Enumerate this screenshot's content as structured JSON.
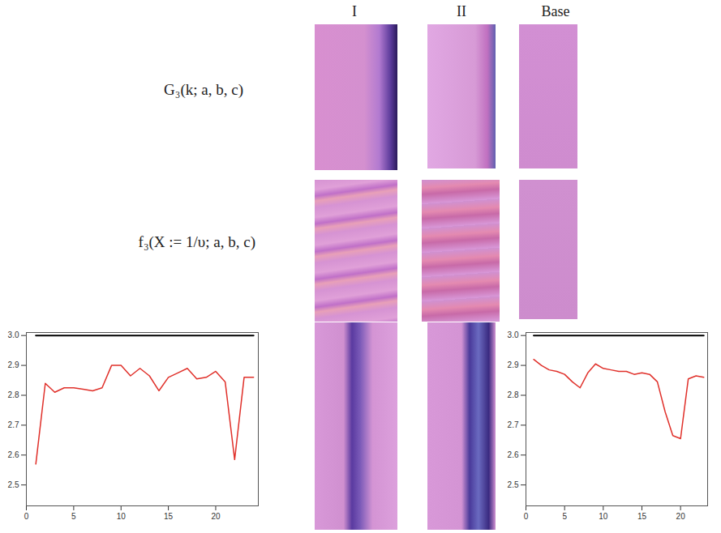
{
  "figure": {
    "column_heads": [
      "I",
      "II",
      "Base"
    ],
    "row_labels": [
      "G₃(k; a, b, c)",
      "f₃(X := 1/υ; a, b, c)"
    ]
  },
  "chart_data": [
    {
      "type": "line",
      "x": [
        1,
        2,
        3,
        4,
        5,
        6,
        7,
        8,
        9,
        10,
        11,
        12,
        13,
        14,
        15,
        16,
        17,
        18,
        19,
        20,
        21,
        22,
        23,
        24
      ],
      "series": [
        {
          "color": "#000000",
          "values": [
            3,
            3,
            3,
            3,
            3,
            3,
            3,
            3,
            3,
            3,
            3,
            3,
            3,
            3,
            3,
            3,
            3,
            3,
            3,
            3,
            3,
            3,
            3,
            3
          ]
        },
        {
          "color": "#e0302a",
          "values": [
            2.57,
            2.84,
            2.81,
            2.825,
            2.825,
            2.82,
            2.815,
            2.825,
            2.9,
            2.9,
            2.865,
            2.89,
            2.865,
            2.815,
            2.86,
            2.875,
            2.89,
            2.855,
            2.86,
            2.88,
            2.845,
            2.585,
            2.86,
            2.86
          ]
        }
      ],
      "xlim": [
        0,
        24.5
      ],
      "xticks": [
        0,
        5,
        10,
        15,
        20
      ],
      "ylim": [
        2.43,
        3.01
      ],
      "yticks": [
        2.5,
        2.6,
        2.7,
        2.8,
        2.9,
        {
          "value": 3,
          "label": "3.0"
        }
      ]
    },
    {
      "type": "line",
      "x": [
        1,
        2,
        3,
        4,
        5,
        6,
        7,
        8,
        9,
        10,
        11,
        12,
        13,
        14,
        15,
        16,
        17,
        18,
        19,
        20,
        21,
        22,
        23
      ],
      "series": [
        {
          "color": "#000000",
          "values": [
            3,
            3,
            3,
            3,
            3,
            3,
            3,
            3,
            3,
            3,
            3,
            3,
            3,
            3,
            3,
            3,
            3,
            3,
            3,
            3,
            3,
            3,
            3
          ]
        },
        {
          "color": "#e0302a",
          "values": [
            2.92,
            2.9,
            2.885,
            2.88,
            2.87,
            2.845,
            2.825,
            2.875,
            2.905,
            2.89,
            2.885,
            2.88,
            2.88,
            2.87,
            2.875,
            2.87,
            2.845,
            2.745,
            2.665,
            2.655,
            2.855,
            2.865,
            2.86
          ]
        }
      ],
      "xlim": [
        0,
        23.5
      ],
      "xticks": [
        0,
        5,
        10,
        15,
        20
      ],
      "ylim": [
        2.43,
        3.01
      ],
      "yticks": [
        2.5,
        2.6,
        2.7,
        2.8,
        2.9,
        {
          "value": 3,
          "label": "3.0"
        }
      ]
    }
  ]
}
